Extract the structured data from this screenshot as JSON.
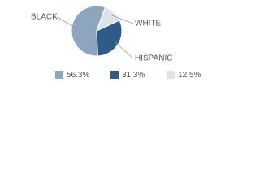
{
  "chart_data": {
    "type": "pie",
    "categories": [
      "BLACK",
      "HISPANIC",
      "WHITE"
    ],
    "values": [
      56.3,
      31.3,
      12.5
    ],
    "value_labels": [
      "56.3%",
      "31.3%",
      "12.5%"
    ],
    "colors": [
      "#8da5bd",
      "#2e5b87",
      "#dbe4ec"
    ]
  }
}
